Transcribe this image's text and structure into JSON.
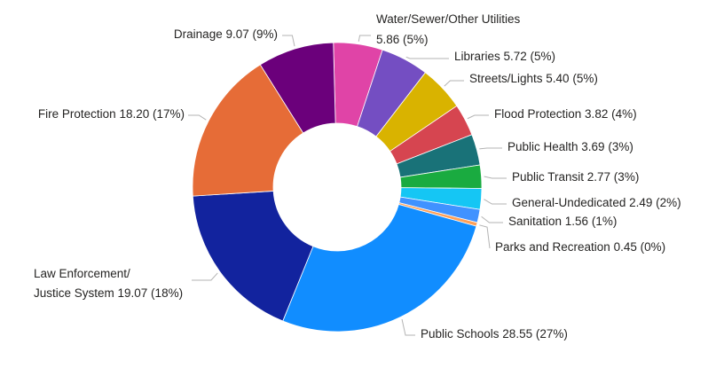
{
  "chart_data": {
    "type": "pie",
    "donut": true,
    "legend": "none",
    "slices": [
      {
        "label": "Water/Sewer/Other Utilities",
        "value": 5.86,
        "pct": "5%",
        "color": "#e044a7"
      },
      {
        "label": "Libraries",
        "value": 5.72,
        "pct": "5%",
        "color": "#744ec2"
      },
      {
        "label": "Streets/Lights",
        "value": 5.4,
        "pct": "5%",
        "color": "#d9b300"
      },
      {
        "label": "Flood Protection",
        "value": 3.82,
        "pct": "4%",
        "color": "#d64550"
      },
      {
        "label": "Public Health",
        "value": 3.69,
        "pct": "3%",
        "color": "#197278"
      },
      {
        "label": "Public Transit",
        "value": 2.77,
        "pct": "3%",
        "color": "#1aab40"
      },
      {
        "label": "General-Undedicated",
        "value": 2.49,
        "pct": "2%",
        "color": "#15c6f4"
      },
      {
        "label": "Sanitation",
        "value": 1.56,
        "pct": "1%",
        "color": "#4092ff"
      },
      {
        "label": "Parks and Recreation",
        "value": 0.45,
        "pct": "0%",
        "color": "#ffa058"
      },
      {
        "label": "Public Schools",
        "value": 28.55,
        "pct": "27%",
        "color": "#118dff"
      },
      {
        "label": "Law Enforcement/ Justice System",
        "value": 19.07,
        "pct": "18%",
        "color": "#12239e"
      },
      {
        "label": "Fire Protection",
        "value": 18.2,
        "pct": "17%",
        "color": "#e66c37"
      },
      {
        "label": "Drainage",
        "value": 9.07,
        "pct": "9%",
        "color": "#6b007b"
      }
    ]
  },
  "labels": {
    "water_1": "Water/Sewer/Other Utilities",
    "water_2": "5.86 (5%)",
    "libraries": "Libraries 5.72 (5%)",
    "streets": "Streets/Lights 5.40 (5%)",
    "flood": "Flood Protection 3.82 (4%)",
    "health": "Public Health 3.69 (3%)",
    "transit": "Public Transit 2.77 (3%)",
    "general": "General-Undedicated 2.49 (2%)",
    "sanitation": "Sanitation 1.56 (1%)",
    "parks": "Parks and Recreation 0.45 (0%)",
    "schools": "Public Schools 28.55 (27%)",
    "law_1": "Law Enforcement/",
    "law_2": "Justice System 19.07 (18%)",
    "fire": "Fire Protection 18.20 (17%)",
    "drainage": "Drainage 9.07 (9%)"
  }
}
